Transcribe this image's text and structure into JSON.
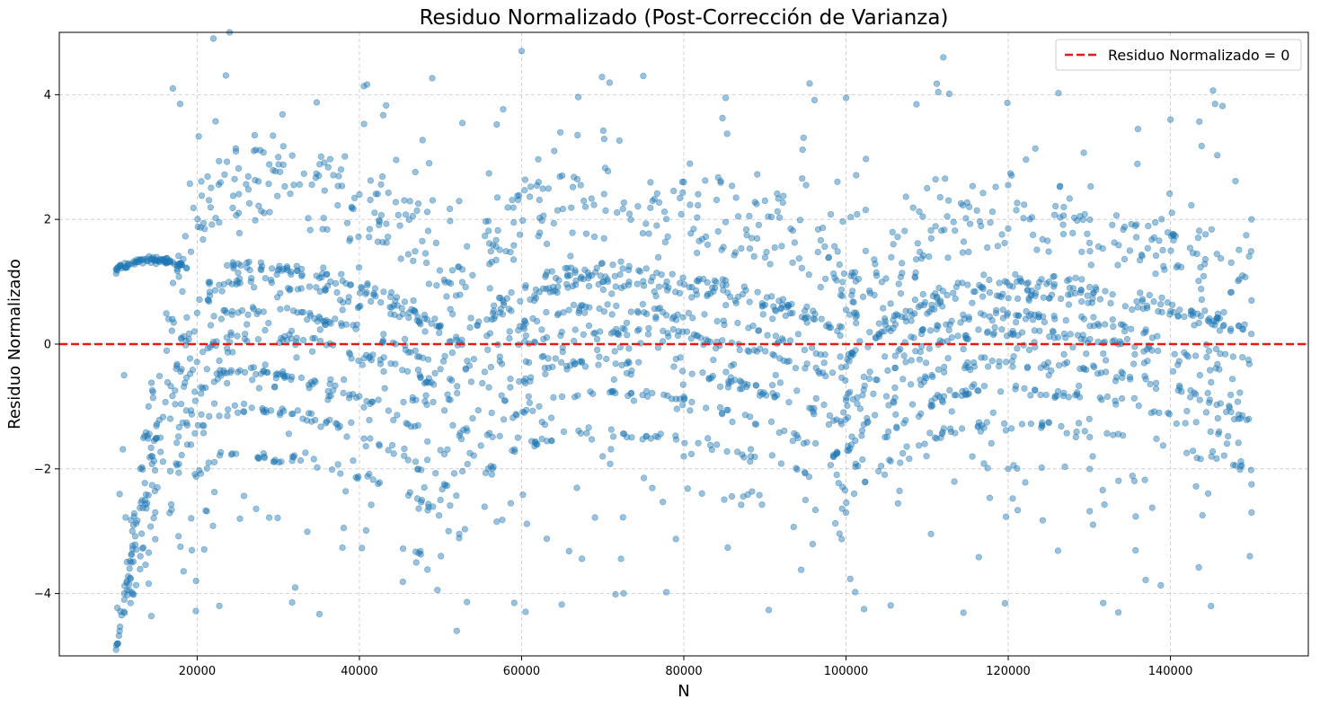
{
  "chart_data": {
    "type": "scatter",
    "title": "Residuo Normalizado (Post-Corrección de Varianza)",
    "xlabel": "N",
    "ylabel": "Residuo Normalizado",
    "xlim": [
      3000,
      157000
    ],
    "ylim": [
      -5,
      5
    ],
    "xticks": [
      20000,
      40000,
      60000,
      80000,
      100000,
      120000,
      140000
    ],
    "yticks": [
      -4,
      -2,
      0,
      2,
      4
    ],
    "grid": true,
    "legend": {
      "placement": "top-right",
      "entries": [
        "Residuo Normalizado = 0"
      ]
    },
    "reference_line": {
      "y": 0,
      "color": "#e31a1c",
      "style": "dashed",
      "label": "Residuo Normalizado = 0"
    },
    "point_color": "#1f77b4",
    "point_alpha": 0.45,
    "x_range_of_points": [
      10000,
      150000
    ],
    "segment_breaks": [
      50000,
      100000
    ],
    "band_peaks_approx": [
      3.1,
      2.6,
      1.3,
      1.0,
      0.5,
      -0.5,
      -1.1,
      -1.9,
      -2.7,
      -4.0
    ],
    "sample_points": [
      [
        10000,
        -4.9
      ],
      [
        10000,
        1.2
      ],
      [
        11000,
        -4.0
      ],
      [
        12000,
        -3.0
      ],
      [
        13000,
        -2.0
      ],
      [
        14000,
        -1.0
      ],
      [
        15000,
        1.35
      ],
      [
        17000,
        4.1
      ],
      [
        18000,
        1.3
      ],
      [
        20000,
        0.5
      ],
      [
        22000,
        4.9
      ],
      [
        24000,
        5.0
      ],
      [
        25000,
        -1.1
      ],
      [
        25000,
        -0.45
      ],
      [
        27000,
        3.1
      ],
      [
        28000,
        1.25
      ],
      [
        30000,
        3.0
      ],
      [
        35000,
        2.7
      ],
      [
        40000,
        2.4
      ],
      [
        45000,
        1.9
      ],
      [
        48000,
        -2.3
      ],
      [
        50000,
        0.3
      ],
      [
        50000,
        -0.4
      ],
      [
        50000,
        -1.7
      ],
      [
        50000,
        -2.5
      ],
      [
        51000,
        -3.0
      ],
      [
        52000,
        -4.6
      ],
      [
        60000,
        4.7
      ],
      [
        65000,
        2.7
      ],
      [
        70000,
        1.0
      ],
      [
        70000,
        -1.8
      ],
      [
        72000,
        0.15
      ],
      [
        75000,
        4.3
      ],
      [
        80000,
        2.6
      ],
      [
        80000,
        -1.8
      ],
      [
        90000,
        2.3
      ],
      [
        95000,
        -2.5
      ],
      [
        100000,
        0.55
      ],
      [
        100000,
        -0.9
      ],
      [
        100000,
        3.95
      ],
      [
        100000,
        -2.7
      ],
      [
        101000,
        -2.4
      ],
      [
        110000,
        2.5
      ],
      [
        112000,
        4.6
      ],
      [
        115000,
        0.95
      ],
      [
        120000,
        2.55
      ],
      [
        120000,
        -2.0
      ],
      [
        125000,
        -0.5
      ],
      [
        130000,
        -1.2
      ],
      [
        135000,
        1.5
      ],
      [
        140000,
        3.6
      ],
      [
        145000,
        -4.2
      ],
      [
        150000,
        0.7
      ],
      [
        150000,
        -2.25
      ],
      [
        150000,
        -2.7
      ],
      [
        150000,
        2.0
      ]
    ]
  }
}
